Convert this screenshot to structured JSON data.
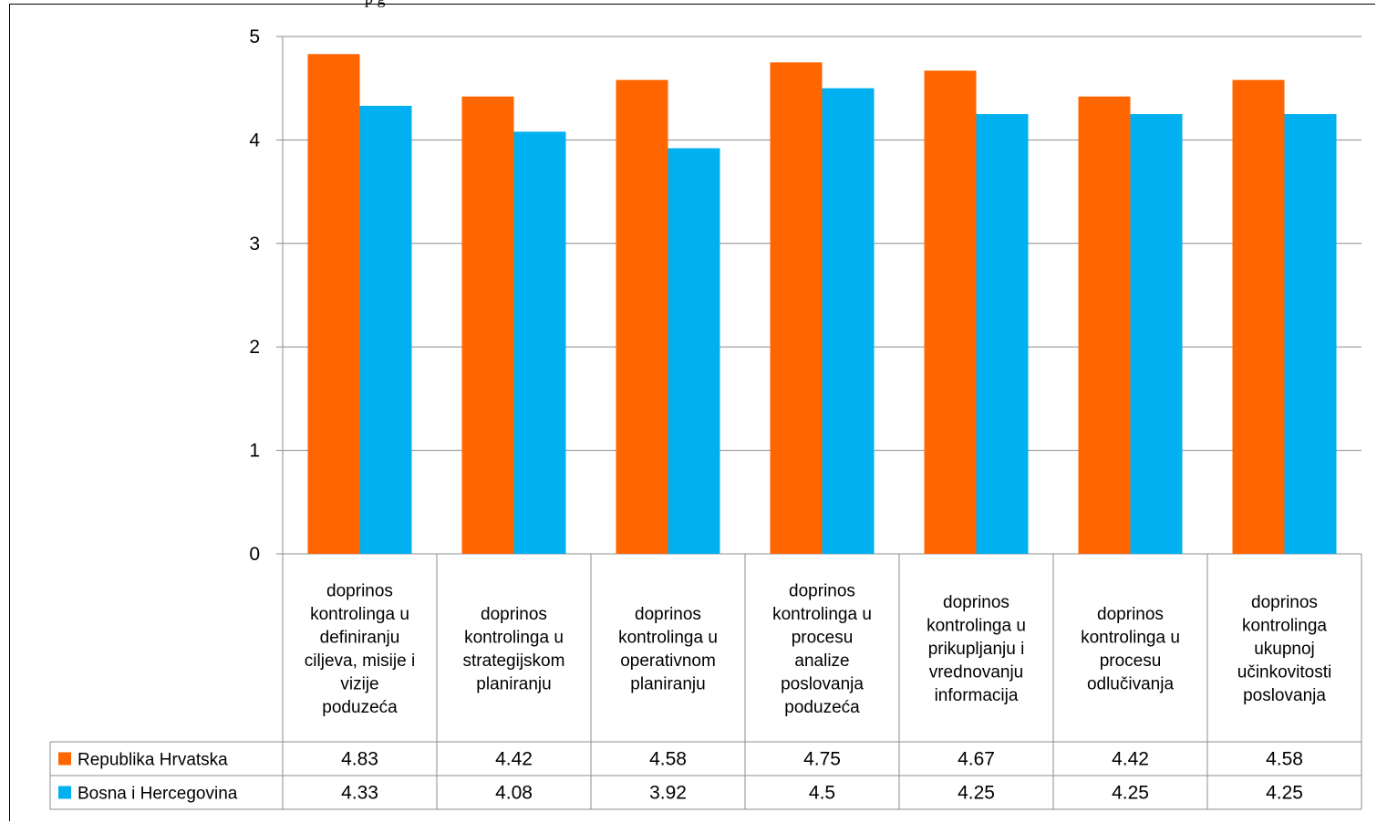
{
  "header": {
    "caption": "p              g"
  },
  "chart_data": {
    "type": "bar",
    "categories": [
      "doprinos kontrolinga u definiranju ciljeva, misije i vizije poduzeća",
      "doprinos kontrolinga u strategijskom planiranju",
      "doprinos kontrolinga u operativnom planiranju",
      "doprinos kontrolinga u procesu analize poslovanja poduzeća",
      "doprinos kontrolinga u prikupljanju i vrednovanju informacija",
      "doprinos kontrolinga u procesu odlučivanja",
      "doprinos kontrolinga ukupnoj učinkovitosti poslovanja"
    ],
    "category_lines": [
      [
        "doprinos",
        "kontrolinga u",
        "definiranju",
        "ciljeva, misije i",
        "vizije",
        "poduzeća"
      ],
      [
        "doprinos",
        "kontrolinga u",
        "strategijskom",
        "planiranju"
      ],
      [
        "doprinos",
        "kontrolinga u",
        "operativnom",
        "planiranju"
      ],
      [
        "doprinos",
        "kontrolinga u",
        "procesu",
        "analize",
        "poslovanja",
        "poduzeća"
      ],
      [
        "doprinos",
        "kontrolinga u",
        "prikupljanju i",
        "vrednovanju",
        "informacija"
      ],
      [
        "doprinos",
        "kontrolinga u",
        "procesu",
        "odlučivanja"
      ],
      [
        "doprinos",
        "kontrolinga",
        "ukupnoj",
        "učinkovitosti",
        "poslovanja"
      ]
    ],
    "series": [
      {
        "name": "Republika Hrvatska",
        "color": "#FF6600",
        "values": [
          4.83,
          4.42,
          4.58,
          4.75,
          4.67,
          4.42,
          4.58
        ],
        "labels": [
          "4.83",
          "4.42",
          "4.58",
          "4.75",
          "4.67",
          "4.42",
          "4.58"
        ]
      },
      {
        "name": "Bosna i Hercegovina",
        "color": "#00B0F0",
        "values": [
          4.33,
          4.08,
          3.92,
          4.5,
          4.25,
          4.25,
          4.25
        ],
        "labels": [
          "4.33",
          "4.08",
          "3.92",
          "4.5",
          "4.25",
          "4.25",
          "4.25"
        ]
      }
    ],
    "ylim": [
      0,
      5
    ],
    "yticks": [
      "0",
      "1",
      "2",
      "3",
      "4",
      "5"
    ],
    "grid": true,
    "legend": "data-table"
  }
}
